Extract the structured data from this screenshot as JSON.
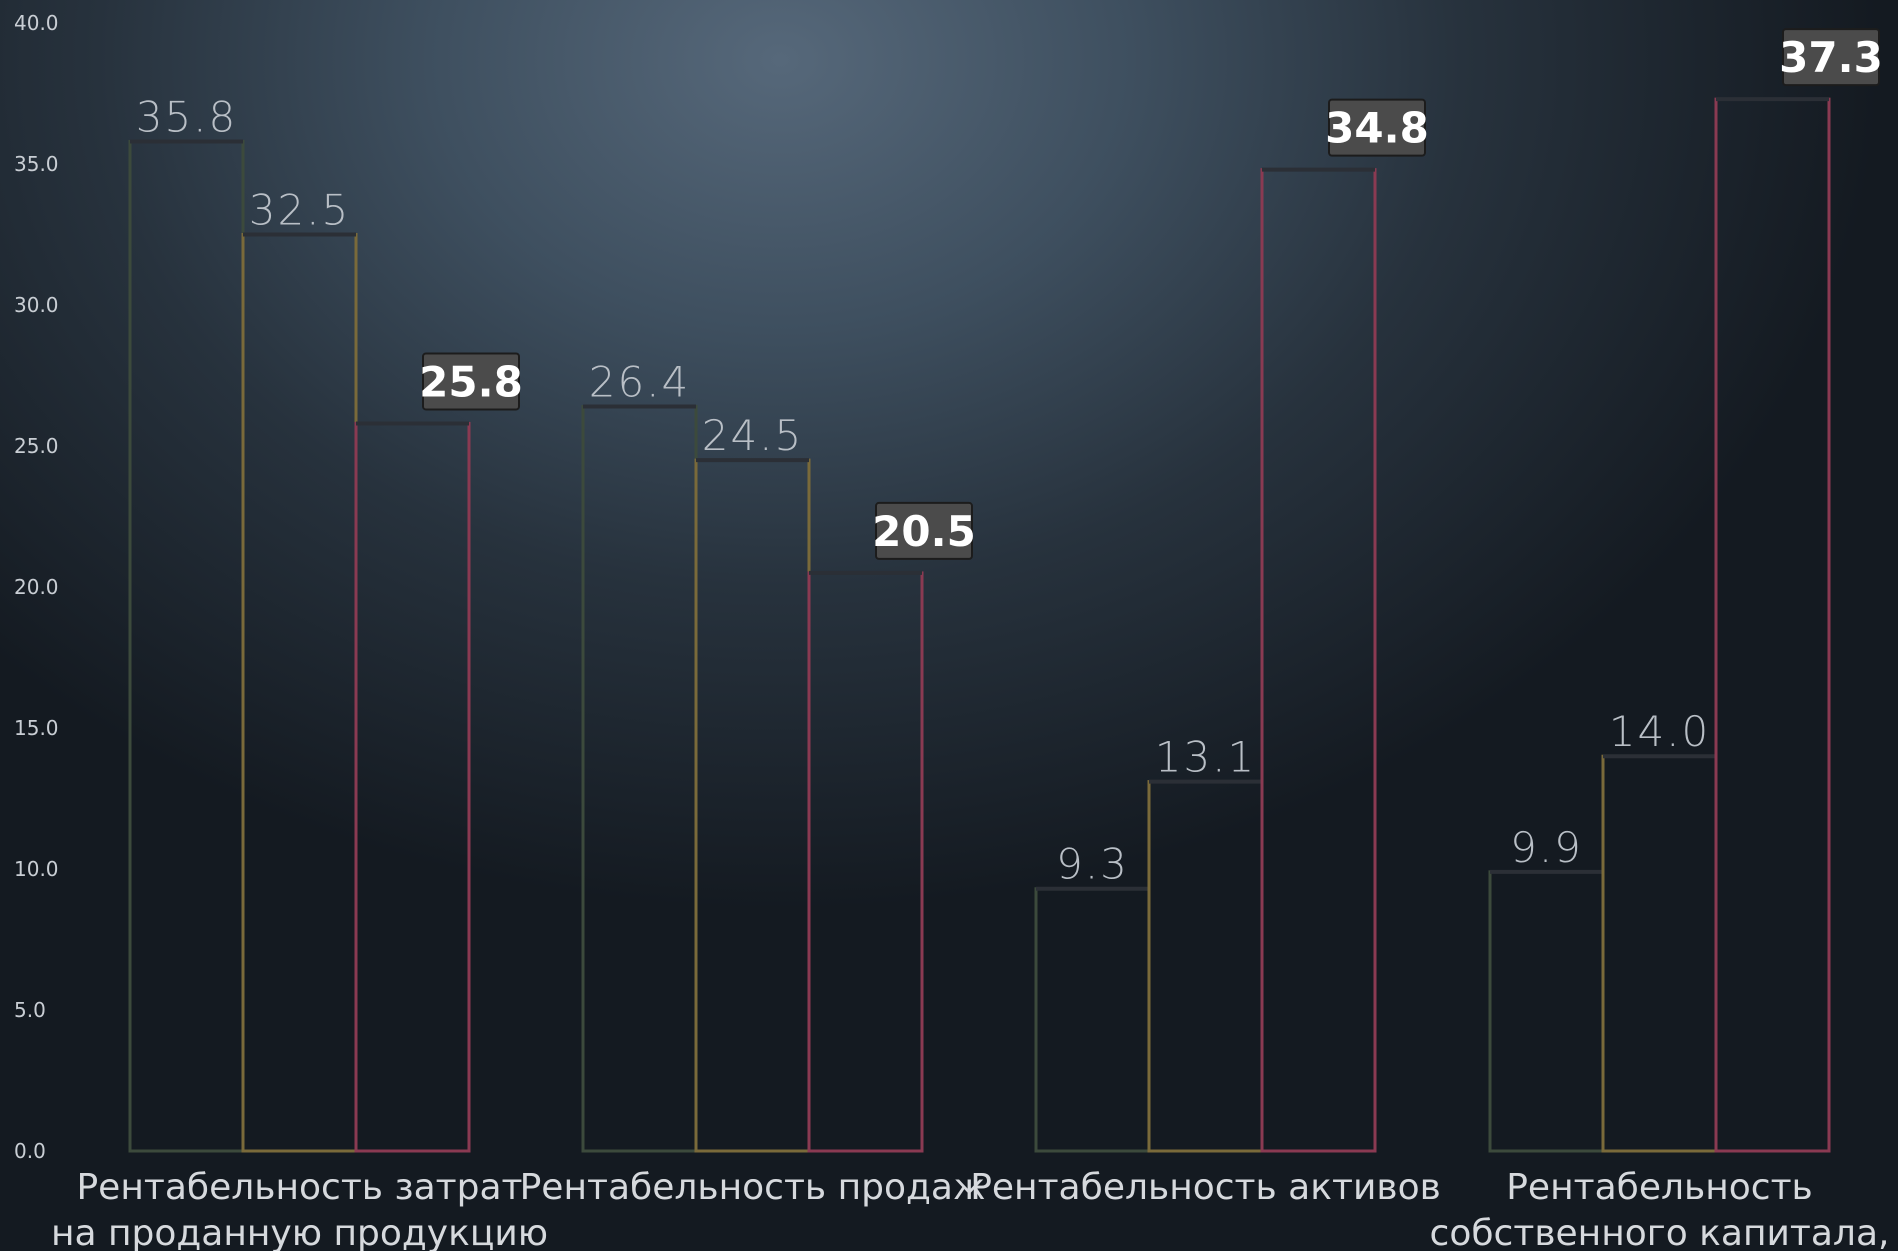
{
  "chart_data": {
    "type": "bar",
    "categories": [
      [
        "Рентабельность затрат",
        "на проданную продукцию"
      ],
      [
        "Рентабельность продаж"
      ],
      [
        "Рентабельность активов"
      ],
      [
        "Рентабельность",
        "собственного капитала,"
      ]
    ],
    "series": [
      {
        "values": [
          35.8,
          26.4,
          9.3,
          9.9
        ],
        "color": "#3c4a3c",
        "highlight": false
      },
      {
        "values": [
          32.5,
          24.5,
          13.1,
          14.0
        ],
        "color": "#7a6a3a",
        "highlight": false
      },
      {
        "values": [
          25.8,
          20.5,
          34.8,
          37.3
        ],
        "color": "#8a3a52",
        "highlight": true
      }
    ],
    "ylim": [
      0,
      40
    ],
    "yticks": [
      "0.0",
      "5.0",
      "10.0",
      "15.0",
      "20.0",
      "25.0",
      "30.0",
      "35.0",
      "40.0"
    ],
    "grid": false,
    "legend": "none",
    "bar_top_color": "#2b2f36"
  }
}
